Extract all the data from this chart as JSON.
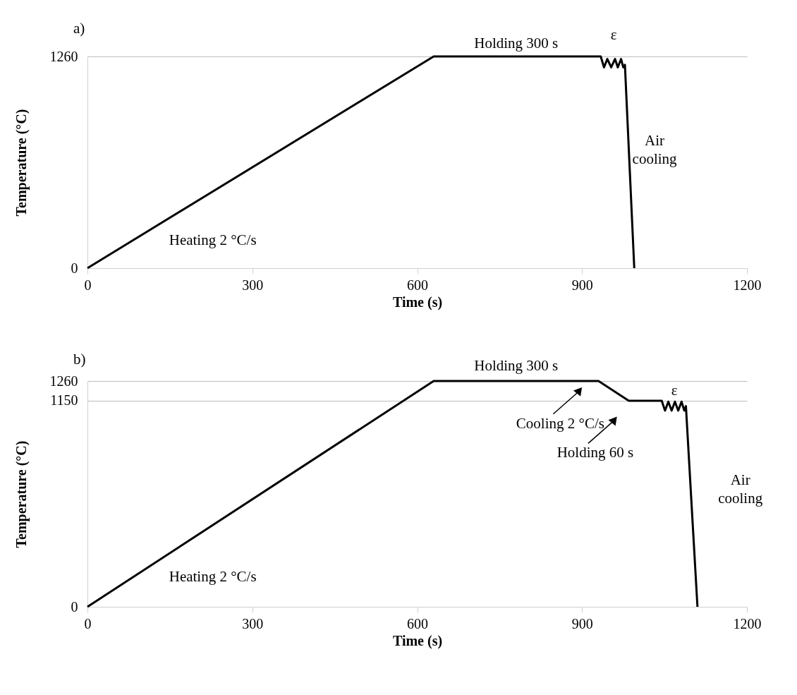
{
  "chart_data": [
    {
      "type": "line",
      "title": "a)",
      "xlabel": "Time (s)",
      "ylabel": "Temperature (°C)",
      "x": [
        0,
        630,
        930,
        934,
        940,
        946,
        953,
        960,
        965,
        971,
        975,
        978,
        995
      ],
      "series": [
        {
          "color": "#000000",
          "values": [
            0,
            1260,
            1260,
            1260,
            1195,
            1245,
            1195,
            1245,
            1195,
            1245,
            1195,
            1210,
            0
          ]
        }
      ],
      "xlim": [
        0,
        1200
      ],
      "xticks": [
        0,
        300,
        600,
        900,
        1200
      ],
      "ylim": [
        0,
        1260
      ],
      "yticks": [
        0,
        1260
      ],
      "grid": "y",
      "marker": "none",
      "line_style": "solid",
      "annotations": [
        "Holding 300 s",
        "ε",
        "Air\ncooling",
        "Heating 2 °C/s"
      ]
    },
    {
      "type": "line",
      "title": "b)",
      "xlabel": "Time (s)",
      "ylabel": "Temperature (°C)",
      "x": [
        0,
        630,
        930,
        985,
        1045,
        1051,
        1057,
        1063,
        1069,
        1075,
        1081,
        1086,
        1089,
        1110
      ],
      "series": [
        {
          "color": "#000000",
          "values": [
            0,
            1260,
            1260,
            1150,
            1150,
            1095,
            1145,
            1095,
            1145,
            1095,
            1145,
            1095,
            1120,
            0
          ]
        }
      ],
      "xlim": [
        0,
        1200
      ],
      "xticks": [
        0,
        300,
        600,
        900,
        1200
      ],
      "ylim": [
        0,
        1260
      ],
      "yticks": [
        0,
        1150,
        1260
      ],
      "grid": "y",
      "marker": "none",
      "line_style": "solid",
      "annotations": [
        "Holding 300 s",
        "ε",
        "Cooling 2 °C/s",
        "Holding 60 s",
        "Air\ncooling",
        "Heating 2 °C/s"
      ]
    }
  ]
}
